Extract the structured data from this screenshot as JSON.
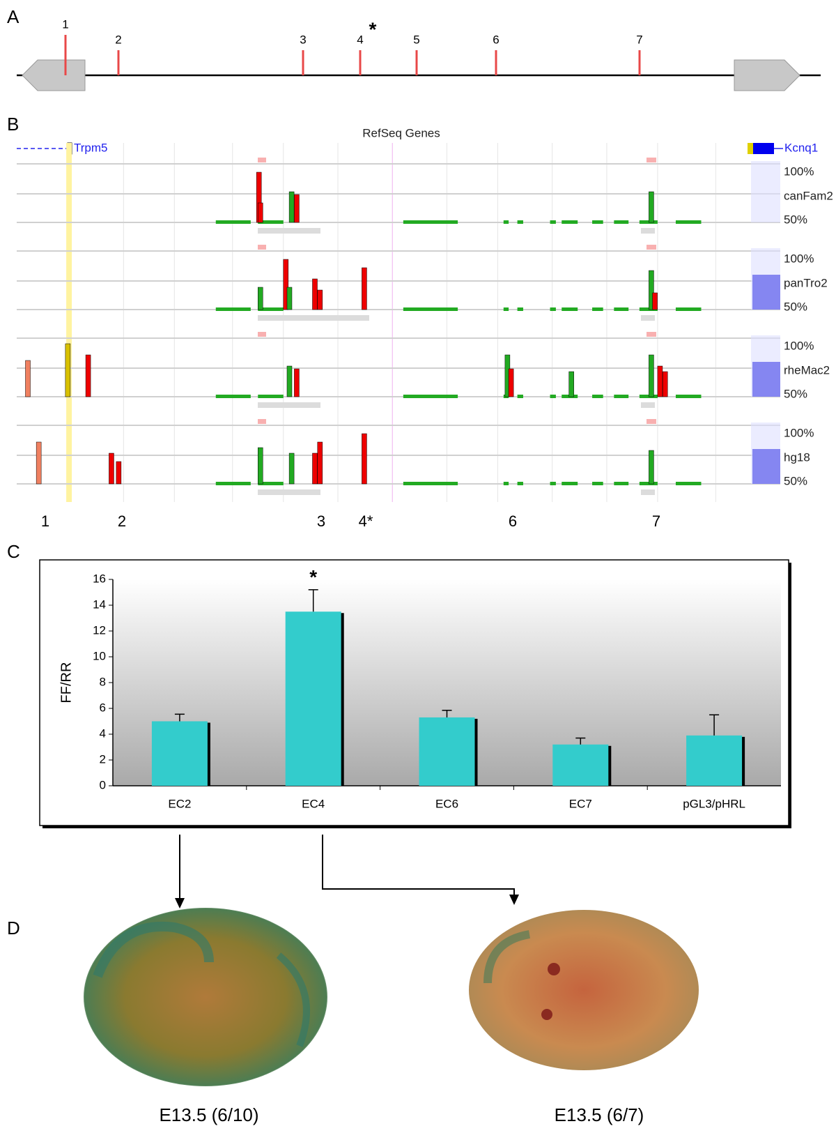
{
  "panel_a": {
    "label": "A",
    "sites": [
      "1",
      "2",
      "3",
      "4",
      "5",
      "6",
      "7"
    ],
    "asterisk": "*"
  },
  "panel_b": {
    "label": "B",
    "header": "RefSeq Genes",
    "gene_left": "Trpm5",
    "gene_right": "Kcnq1",
    "tracks": [
      {
        "name": "canFam2",
        "top": "100%",
        "bottom": "50%"
      },
      {
        "name": "panTro2",
        "top": "100%",
        "bottom": "50%"
      },
      {
        "name": "rheMac2",
        "top": "100%",
        "bottom": "50%"
      },
      {
        "name": "hg18",
        "top": "100%",
        "bottom": "50%"
      }
    ],
    "site_labels": [
      "1",
      "2",
      "3",
      "4*",
      "6",
      "7"
    ]
  },
  "panel_c_label": "C",
  "chart_data": {
    "type": "bar",
    "ylabel": "FF/RR",
    "categories": [
      "EC2",
      "EC4",
      "EC6",
      "EC7",
      "pGL3/pHRL"
    ],
    "values": [
      5.0,
      13.5,
      5.3,
      3.2,
      3.9
    ],
    "errors": [
      0.55,
      1.7,
      0.55,
      0.5,
      1.6
    ],
    "color": "#33cccc",
    "ylim": [
      0,
      16
    ],
    "yticks": [
      0,
      2,
      4,
      6,
      8,
      10,
      12,
      14,
      16
    ],
    "annotation": "*"
  },
  "panel_d": {
    "label": "D",
    "captions": [
      "E13.5 (6/10)",
      "E13.5 (6/7)"
    ]
  }
}
